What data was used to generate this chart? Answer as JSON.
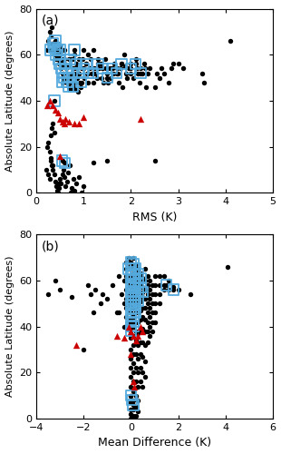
{
  "title_a": "(a)",
  "title_b": "(b)",
  "xlabel_a": "RMS (K)",
  "xlabel_b": "Mean Difference (K)",
  "ylabel": "Absolute Latitude (degrees)",
  "xlim_a": [
    0,
    5
  ],
  "xlim_b": [
    -4,
    6
  ],
  "ylim": [
    0,
    80
  ],
  "yticks": [
    0,
    20,
    40,
    60,
    80
  ],
  "xticks_a": [
    0,
    1,
    2,
    3,
    4,
    5
  ],
  "xticks_b": [
    -4,
    -2,
    0,
    2,
    4,
    6
  ],
  "rms_black": [
    [
      0.22,
      62
    ],
    [
      0.25,
      66
    ],
    [
      0.28,
      70
    ],
    [
      0.3,
      68
    ],
    [
      0.32,
      72
    ],
    [
      0.35,
      65
    ],
    [
      0.38,
      62
    ],
    [
      0.4,
      60
    ],
    [
      0.42,
      58
    ],
    [
      0.45,
      65
    ],
    [
      0.47,
      60
    ],
    [
      0.48,
      56
    ],
    [
      0.5,
      64
    ],
    [
      0.5,
      60
    ],
    [
      0.52,
      57
    ],
    [
      0.55,
      62
    ],
    [
      0.55,
      55
    ],
    [
      0.57,
      58
    ],
    [
      0.58,
      52
    ],
    [
      0.6,
      62
    ],
    [
      0.6,
      58
    ],
    [
      0.62,
      55
    ],
    [
      0.63,
      50
    ],
    [
      0.65,
      55
    ],
    [
      0.65,
      48
    ],
    [
      0.67,
      52
    ],
    [
      0.68,
      58
    ],
    [
      0.7,
      55
    ],
    [
      0.7,
      50
    ],
    [
      0.72,
      48
    ],
    [
      0.73,
      45
    ],
    [
      0.75,
      52
    ],
    [
      0.75,
      48
    ],
    [
      0.77,
      58
    ],
    [
      0.78,
      54
    ],
    [
      0.8,
      60
    ],
    [
      0.8,
      52
    ],
    [
      0.82,
      48
    ],
    [
      0.83,
      45
    ],
    [
      0.85,
      54
    ],
    [
      0.87,
      50
    ],
    [
      0.88,
      44
    ],
    [
      0.9,
      58
    ],
    [
      0.9,
      52
    ],
    [
      0.92,
      48
    ],
    [
      0.93,
      46
    ],
    [
      0.95,
      54
    ],
    [
      0.97,
      58
    ],
    [
      1.0,
      62
    ],
    [
      1.0,
      54
    ],
    [
      1.02,
      50
    ],
    [
      1.05,
      56
    ],
    [
      1.07,
      52
    ],
    [
      1.1,
      60
    ],
    [
      1.1,
      48
    ],
    [
      1.12,
      54
    ],
    [
      1.15,
      58
    ],
    [
      1.17,
      52
    ],
    [
      1.2,
      62
    ],
    [
      1.2,
      48
    ],
    [
      1.22,
      54
    ],
    [
      1.25,
      52
    ],
    [
      1.28,
      50
    ],
    [
      1.3,
      58
    ],
    [
      1.32,
      54
    ],
    [
      1.35,
      56
    ],
    [
      1.37,
      50
    ],
    [
      1.4,
      54
    ],
    [
      1.42,
      48
    ],
    [
      1.45,
      58
    ],
    [
      1.47,
      54
    ],
    [
      1.5,
      52
    ],
    [
      1.52,
      48
    ],
    [
      1.55,
      54
    ],
    [
      1.57,
      50
    ],
    [
      1.6,
      54
    ],
    [
      1.62,
      52
    ],
    [
      1.65,
      56
    ],
    [
      1.7,
      54
    ],
    [
      1.72,
      52
    ],
    [
      1.75,
      48
    ],
    [
      1.78,
      54
    ],
    [
      1.8,
      56
    ],
    [
      1.82,
      46
    ],
    [
      1.85,
      60
    ],
    [
      1.88,
      55
    ],
    [
      1.9,
      52
    ],
    [
      1.92,
      50
    ],
    [
      1.95,
      54
    ],
    [
      2.0,
      56
    ],
    [
      2.0,
      52
    ],
    [
      2.05,
      50
    ],
    [
      2.1,
      58
    ],
    [
      2.12,
      54
    ],
    [
      2.15,
      52
    ],
    [
      2.18,
      48
    ],
    [
      2.2,
      54
    ],
    [
      2.25,
      52
    ],
    [
      2.28,
      56
    ],
    [
      2.3,
      54
    ],
    [
      2.32,
      46
    ],
    [
      2.35,
      52
    ],
    [
      2.4,
      54
    ],
    [
      2.5,
      46
    ],
    [
      2.55,
      52
    ],
    [
      2.6,
      50
    ],
    [
      2.65,
      54
    ],
    [
      2.7,
      52
    ],
    [
      2.8,
      48
    ],
    [
      2.85,
      54
    ],
    [
      2.9,
      56
    ],
    [
      3.0,
      56
    ],
    [
      3.1,
      54
    ],
    [
      3.5,
      52
    ],
    [
      3.55,
      48
    ],
    [
      4.1,
      66
    ],
    [
      0.2,
      10
    ],
    [
      0.25,
      8
    ],
    [
      0.28,
      6
    ],
    [
      0.3,
      14
    ],
    [
      0.32,
      12
    ],
    [
      0.35,
      10
    ],
    [
      0.38,
      8
    ],
    [
      0.4,
      5
    ],
    [
      0.42,
      3
    ],
    [
      0.43,
      1
    ],
    [
      0.45,
      0
    ],
    [
      0.47,
      2
    ],
    [
      0.48,
      4
    ],
    [
      0.5,
      6
    ],
    [
      0.52,
      4
    ],
    [
      0.55,
      8
    ],
    [
      0.57,
      10
    ],
    [
      0.6,
      7
    ],
    [
      0.62,
      3
    ],
    [
      0.65,
      5
    ],
    [
      0.67,
      9
    ],
    [
      0.7,
      12
    ],
    [
      0.72,
      0
    ],
    [
      0.75,
      2
    ],
    [
      0.78,
      6
    ],
    [
      0.8,
      1
    ],
    [
      0.85,
      4
    ],
    [
      0.9,
      7
    ],
    [
      0.95,
      0
    ],
    [
      1.0,
      3
    ],
    [
      1.2,
      13
    ],
    [
      1.5,
      14
    ],
    [
      2.5,
      14
    ],
    [
      0.22,
      20
    ],
    [
      0.25,
      22
    ],
    [
      0.28,
      18
    ],
    [
      0.3,
      15
    ],
    [
      0.35,
      12
    ],
    [
      0.3,
      25
    ],
    [
      0.32,
      28
    ],
    [
      0.35,
      30
    ],
    [
      0.38,
      26
    ]
  ],
  "rms_red_tri": [
    [
      0.22,
      38
    ],
    [
      0.28,
      40
    ],
    [
      0.35,
      38
    ],
    [
      0.4,
      36
    ],
    [
      0.45,
      35
    ],
    [
      0.5,
      32
    ],
    [
      0.55,
      31
    ],
    [
      0.6,
      30
    ],
    [
      0.62,
      32
    ],
    [
      0.68,
      31
    ],
    [
      0.8,
      30
    ],
    [
      0.9,
      30
    ],
    [
      1.0,
      33
    ],
    [
      0.5,
      16
    ],
    [
      2.2,
      32
    ]
  ],
  "rms_blue_sq": [
    [
      0.3,
      62
    ],
    [
      0.35,
      65
    ],
    [
      0.38,
      63
    ],
    [
      0.4,
      66
    ],
    [
      0.42,
      60
    ],
    [
      0.45,
      62
    ],
    [
      0.48,
      58
    ],
    [
      0.5,
      62
    ],
    [
      0.5,
      56
    ],
    [
      0.52,
      54
    ],
    [
      0.55,
      52
    ],
    [
      0.55,
      48
    ],
    [
      0.58,
      50
    ],
    [
      0.6,
      56
    ],
    [
      0.63,
      54
    ],
    [
      0.65,
      48
    ],
    [
      0.68,
      46
    ],
    [
      0.7,
      50
    ],
    [
      0.72,
      58
    ],
    [
      0.75,
      52
    ],
    [
      0.78,
      46
    ],
    [
      0.8,
      62
    ],
    [
      0.85,
      56
    ],
    [
      0.9,
      52
    ],
    [
      0.95,
      48
    ],
    [
      1.0,
      54
    ],
    [
      1.05,
      56
    ],
    [
      1.1,
      52
    ],
    [
      1.2,
      52
    ],
    [
      1.3,
      56
    ],
    [
      1.4,
      54
    ],
    [
      1.5,
      50
    ],
    [
      1.6,
      54
    ],
    [
      1.7,
      52
    ],
    [
      1.8,
      56
    ],
    [
      2.0,
      54
    ],
    [
      2.1,
      56
    ],
    [
      2.2,
      52
    ],
    [
      0.55,
      14
    ],
    [
      0.6,
      13
    ],
    [
      0.38,
      40
    ]
  ],
  "md_black": [
    [
      -3.5,
      54
    ],
    [
      -3.2,
      60
    ],
    [
      -3.0,
      56
    ],
    [
      -2.5,
      53
    ],
    [
      -2.0,
      30
    ],
    [
      -1.8,
      58
    ],
    [
      -1.7,
      54
    ],
    [
      -1.6,
      46
    ],
    [
      -1.5,
      56
    ],
    [
      -1.3,
      50
    ],
    [
      -1.2,
      54
    ],
    [
      -1.0,
      52
    ],
    [
      -0.8,
      58
    ],
    [
      -0.6,
      46
    ],
    [
      -0.5,
      62
    ],
    [
      -0.4,
      54
    ],
    [
      -0.3,
      50
    ],
    [
      -0.3,
      60
    ],
    [
      -0.2,
      68
    ],
    [
      -0.2,
      65
    ],
    [
      -0.2,
      62
    ],
    [
      -0.2,
      60
    ],
    [
      -0.2,
      56
    ],
    [
      -0.2,
      52
    ],
    [
      -0.2,
      48
    ],
    [
      -0.2,
      44
    ],
    [
      -0.1,
      70
    ],
    [
      -0.1,
      66
    ],
    [
      -0.1,
      62
    ],
    [
      -0.1,
      58
    ],
    [
      -0.1,
      54
    ],
    [
      -0.1,
      50
    ],
    [
      -0.1,
      46
    ],
    [
      -0.1,
      42
    ],
    [
      0.0,
      68
    ],
    [
      0.0,
      65
    ],
    [
      0.0,
      62
    ],
    [
      0.0,
      58
    ],
    [
      0.0,
      54
    ],
    [
      0.0,
      50
    ],
    [
      0.0,
      46
    ],
    [
      0.0,
      42
    ],
    [
      0.0,
      38
    ],
    [
      0.0,
      35
    ],
    [
      0.0,
      30
    ],
    [
      0.0,
      26
    ],
    [
      0.0,
      22
    ],
    [
      0.0,
      18
    ],
    [
      0.0,
      14
    ],
    [
      0.0,
      10
    ],
    [
      0.0,
      7
    ],
    [
      0.0,
      4
    ],
    [
      0.0,
      2
    ],
    [
      0.0,
      0
    ],
    [
      0.1,
      70
    ],
    [
      0.1,
      66
    ],
    [
      0.1,
      62
    ],
    [
      0.1,
      58
    ],
    [
      0.1,
      55
    ],
    [
      0.1,
      52
    ],
    [
      0.1,
      48
    ],
    [
      0.1,
      44
    ],
    [
      0.1,
      40
    ],
    [
      0.1,
      36
    ],
    [
      0.1,
      32
    ],
    [
      0.1,
      28
    ],
    [
      0.1,
      24
    ],
    [
      0.1,
      20
    ],
    [
      0.1,
      16
    ],
    [
      0.1,
      12
    ],
    [
      0.1,
      8
    ],
    [
      0.1,
      4
    ],
    [
      0.1,
      1
    ],
    [
      0.1,
      0
    ],
    [
      0.2,
      67
    ],
    [
      0.2,
      63
    ],
    [
      0.2,
      60
    ],
    [
      0.2,
      57
    ],
    [
      0.2,
      53
    ],
    [
      0.2,
      50
    ],
    [
      0.2,
      46
    ],
    [
      0.2,
      42
    ],
    [
      0.2,
      38
    ],
    [
      0.2,
      34
    ],
    [
      0.2,
      28
    ],
    [
      0.2,
      22
    ],
    [
      0.2,
      16
    ],
    [
      0.2,
      10
    ],
    [
      0.2,
      5
    ],
    [
      0.2,
      1
    ],
    [
      0.3,
      65
    ],
    [
      0.3,
      61
    ],
    [
      0.3,
      57
    ],
    [
      0.3,
      53
    ],
    [
      0.3,
      50
    ],
    [
      0.3,
      46
    ],
    [
      0.3,
      42
    ],
    [
      0.3,
      37
    ],
    [
      0.3,
      32
    ],
    [
      0.3,
      26
    ],
    [
      0.3,
      20
    ],
    [
      0.3,
      14
    ],
    [
      0.3,
      8
    ],
    [
      0.3,
      3
    ],
    [
      0.4,
      63
    ],
    [
      0.4,
      59
    ],
    [
      0.4,
      55
    ],
    [
      0.4,
      51
    ],
    [
      0.4,
      47
    ],
    [
      0.4,
      43
    ],
    [
      0.4,
      38
    ],
    [
      0.4,
      33
    ],
    [
      0.4,
      28
    ],
    [
      0.4,
      22
    ],
    [
      0.4,
      16
    ],
    [
      0.5,
      61
    ],
    [
      0.5,
      57
    ],
    [
      0.5,
      53
    ],
    [
      0.5,
      48
    ],
    [
      0.5,
      44
    ],
    [
      0.5,
      39
    ],
    [
      0.5,
      33
    ],
    [
      0.5,
      27
    ],
    [
      0.5,
      20
    ],
    [
      0.5,
      14
    ],
    [
      0.6,
      65
    ],
    [
      0.6,
      60
    ],
    [
      0.6,
      56
    ],
    [
      0.6,
      52
    ],
    [
      0.6,
      48
    ],
    [
      0.6,
      43
    ],
    [
      0.6,
      38
    ],
    [
      0.6,
      32
    ],
    [
      0.6,
      25
    ],
    [
      0.6,
      18
    ],
    [
      0.7,
      62
    ],
    [
      0.7,
      58
    ],
    [
      0.7,
      54
    ],
    [
      0.7,
      50
    ],
    [
      0.7,
      46
    ],
    [
      0.7,
      42
    ],
    [
      0.7,
      38
    ],
    [
      0.7,
      33
    ],
    [
      0.8,
      60
    ],
    [
      0.8,
      56
    ],
    [
      0.8,
      52
    ],
    [
      0.8,
      48
    ],
    [
      0.8,
      44
    ],
    [
      0.8,
      40
    ],
    [
      0.8,
      36
    ],
    [
      0.9,
      58
    ],
    [
      0.9,
      54
    ],
    [
      0.9,
      50
    ],
    [
      0.9,
      46
    ],
    [
      0.9,
      42
    ],
    [
      0.9,
      38
    ],
    [
      1.0,
      62
    ],
    [
      1.0,
      58
    ],
    [
      1.0,
      54
    ],
    [
      1.0,
      50
    ],
    [
      1.0,
      46
    ],
    [
      1.0,
      42
    ],
    [
      1.2,
      62
    ],
    [
      1.2,
      58
    ],
    [
      1.2,
      54
    ],
    [
      1.2,
      50
    ],
    [
      1.4,
      62
    ],
    [
      1.4,
      58
    ],
    [
      1.4,
      56
    ],
    [
      1.6,
      60
    ],
    [
      1.6,
      56
    ],
    [
      1.8,
      57
    ],
    [
      2.0,
      56
    ],
    [
      2.5,
      54
    ],
    [
      4.1,
      66
    ],
    [
      -0.5,
      46
    ],
    [
      -0.3,
      40
    ]
  ],
  "md_red_tri": [
    [
      -2.3,
      32
    ],
    [
      -0.6,
      36
    ],
    [
      -0.3,
      35
    ],
    [
      -0.1,
      40
    ],
    [
      0.0,
      38
    ],
    [
      0.1,
      36
    ],
    [
      0.2,
      34
    ],
    [
      0.3,
      36
    ],
    [
      0.4,
      40
    ],
    [
      0.5,
      38
    ],
    [
      0.1,
      16
    ],
    [
      0.15,
      14
    ],
    [
      0.0,
      28
    ]
  ],
  "md_blue_sq": [
    [
      -0.1,
      65
    ],
    [
      0.0,
      68
    ],
    [
      0.0,
      65
    ],
    [
      0.0,
      62
    ],
    [
      0.0,
      58
    ],
    [
      0.0,
      55
    ],
    [
      0.0,
      52
    ],
    [
      0.0,
      49
    ],
    [
      0.0,
      46
    ],
    [
      0.0,
      43
    ],
    [
      0.0,
      40
    ],
    [
      0.1,
      67
    ],
    [
      0.1,
      63
    ],
    [
      0.1,
      60
    ],
    [
      0.1,
      57
    ],
    [
      0.1,
      54
    ],
    [
      0.1,
      51
    ],
    [
      0.1,
      48
    ],
    [
      0.1,
      45
    ],
    [
      0.1,
      42
    ],
    [
      0.2,
      65
    ],
    [
      0.2,
      61
    ],
    [
      0.2,
      58
    ],
    [
      0.2,
      55
    ],
    [
      0.2,
      52
    ],
    [
      0.2,
      49
    ],
    [
      0.2,
      46
    ],
    [
      0.3,
      63
    ],
    [
      0.3,
      59
    ],
    [
      0.3,
      55
    ],
    [
      0.3,
      51
    ],
    [
      0.4,
      61
    ],
    [
      0.4,
      57
    ],
    [
      0.5,
      55
    ],
    [
      1.5,
      58
    ],
    [
      1.8,
      56
    ],
    [
      0.0,
      10
    ],
    [
      0.05,
      8
    ],
    [
      0.1,
      6
    ],
    [
      0.0,
      38
    ],
    [
      0.1,
      40
    ]
  ],
  "dot_color": "#000000",
  "tri_color": "#cc0000",
  "sq_color": "#55aadd",
  "dot_size": 15,
  "tri_size": 28,
  "sq_linewidth": 1.3,
  "background_color": "#ffffff",
  "fig_width": 3.1,
  "fig_height": 5.0,
  "dpi": 100
}
